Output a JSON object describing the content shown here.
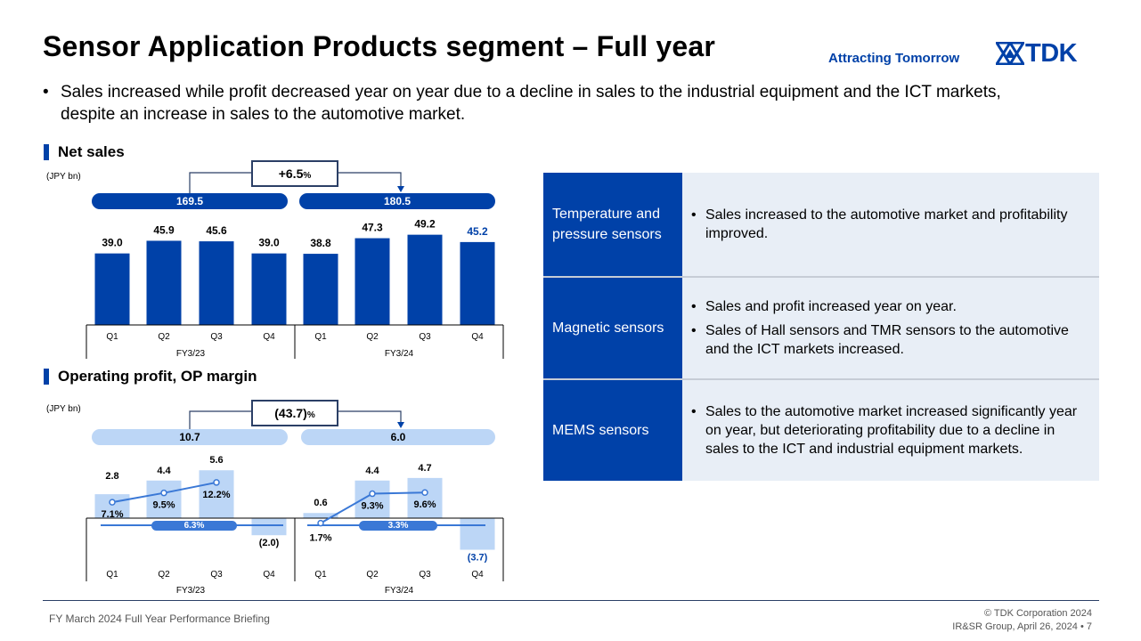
{
  "header": {
    "title": "Sensor Application Products segment – Full year",
    "tagline": "Attracting Tomorrow",
    "logo_text": "TDK"
  },
  "summary": "Sales increased while profit decreased year on year due to a decline in sales to the industrial equipment and the ICT markets, despite an increase in sales to the automotive market.",
  "net_sales": {
    "heading": "Net sales",
    "unit": "(JPY bn)",
    "change": "+6.5",
    "change_suffix": "%",
    "fy23_total": "169.5",
    "fy24_total": "180.5"
  },
  "op_profit": {
    "heading": "Operating profit, OP margin",
    "unit": "(JPY bn)",
    "change": "(43.7)",
    "change_suffix": "%",
    "fy23_total": "10.7",
    "fy24_total": "6.0",
    "fy23_avg_margin": "6.3%",
    "fy24_avg_margin": "3.3%"
  },
  "chart_data": [
    {
      "type": "bar",
      "title": "Net sales",
      "ylabel": "(JPY bn)",
      "categories": [
        "Q1",
        "Q2",
        "Q3",
        "Q4",
        "Q1",
        "Q2",
        "Q3",
        "Q4"
      ],
      "groups": [
        "FY3/23",
        "FY3/24"
      ],
      "values": [
        39.0,
        45.9,
        45.6,
        39.0,
        38.8,
        47.3,
        49.2,
        45.2
      ],
      "labels": [
        "39.0",
        "45.9",
        "45.6",
        "39.0",
        "38.8",
        "47.3",
        "49.2",
        "45.2"
      ],
      "ylim": [
        0,
        55
      ],
      "colors": {
        "bar": "#0041a8",
        "highlight_label": "#0041a8"
      }
    },
    {
      "type": "bar",
      "title": "Operating profit, OP margin",
      "ylabel": "(JPY bn)",
      "categories": [
        "Q1",
        "Q2",
        "Q3",
        "Q4",
        "Q1",
        "Q2",
        "Q3",
        "Q4"
      ],
      "groups": [
        "FY3/23",
        "FY3/24"
      ],
      "values": [
        2.8,
        4.4,
        5.6,
        -2.0,
        0.6,
        4.4,
        4.7,
        -3.7
      ],
      "labels": [
        "2.8",
        "4.4",
        "5.6",
        "(2.0)",
        "0.6",
        "4.4",
        "4.7",
        "(3.7)"
      ],
      "margin_series": {
        "name": "OP margin",
        "values": [
          7.1,
          9.5,
          12.2,
          null,
          1.7,
          9.3,
          9.6,
          null
        ],
        "labels": [
          "7.1%",
          "9.5%",
          "12.2%",
          "",
          "1.7%",
          "9.3%",
          "9.6%",
          ""
        ]
      },
      "average_margin": {
        "FY3/23": 6.3,
        "FY3/24": 3.3
      },
      "ylim": [
        -4,
        6
      ],
      "colors": {
        "bar": "#bcd6f6",
        "line": "#3a78d6",
        "avg": "#3a78d6"
      }
    }
  ],
  "table": {
    "rows": [
      {
        "heading": "Temperature and pressure sensors",
        "points": [
          "Sales increased to the automotive market and profitability improved."
        ]
      },
      {
        "heading": "Magnetic sensors",
        "points": [
          "Sales and profit increased year on year.",
          "Sales of Hall sensors and TMR sensors to the automotive and the ICT markets increased."
        ]
      },
      {
        "heading": "MEMS sensors",
        "points": [
          "Sales to the automotive market increased significantly year on year, but deteriorating profitability due to a decline in sales to the ICT and industrial equipment markets."
        ]
      }
    ]
  },
  "footer": {
    "left": "FY March 2024 Full Year Performance Briefing",
    "copyright": "© TDK Corporation 2024",
    "group_date": "IR&SR Group, April 26, 2024",
    "page": "7"
  },
  "colors": {
    "brand": "#0041a8",
    "light": "#bcd6f6",
    "line": "#3a78d6"
  }
}
